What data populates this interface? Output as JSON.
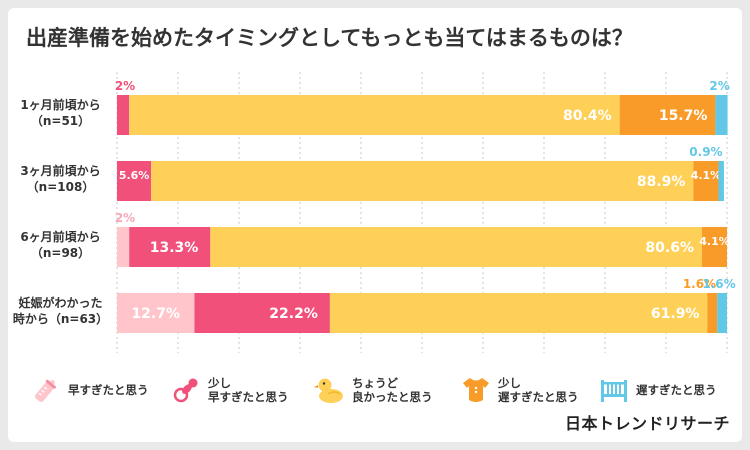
{
  "title": "出産準備を始めたタイミングとしてもっとも当てはまるものは？",
  "brand": "日本トレンドリサーチ",
  "colors": {
    "too_early": "#ffc5cb",
    "slightly_early": "#f0507a",
    "just_right": "#ffd057",
    "slightly_late": "#f99b28",
    "too_late": "#63c8e8",
    "grid": "#c8c8c8",
    "text_dark": "#333333"
  },
  "rows": [
    {
      "line1": "1ヶ月前頃から",
      "line2": "（n=51）"
    },
    {
      "line1": "3ヶ月前頃から",
      "line2": "（n=108）"
    },
    {
      "line1": "6ヶ月前頃から",
      "line2": "（n=98）"
    },
    {
      "line1": "妊娠がわかった",
      "line2": "時から（n=63）"
    }
  ],
  "legend": [
    {
      "icon": "baby-bottle-icon",
      "line1": "早すぎたと思う",
      "line2": ""
    },
    {
      "icon": "pacifier-icon",
      "line1": "少し",
      "line2": "早すぎたと思う"
    },
    {
      "icon": "rubber-duck-icon",
      "line1": "ちょうど",
      "line2": "良かったと思う"
    },
    {
      "icon": "baby-onesie-icon",
      "line1": "少し",
      "line2": "遅すぎたと思う"
    },
    {
      "icon": "crib-icon",
      "line1": "遅すぎたと思う",
      "line2": ""
    }
  ],
  "chart_data": {
    "type": "bar",
    "orientation": "horizontal",
    "stacked": true,
    "title": "出産準備を始めたタイミングとしてもっとも当てはまるものは？",
    "categories": [
      "1ヶ月前頃から（n=51）",
      "3ヶ月前頃から（n=108）",
      "6ヶ月前頃から（n=98）",
      "妊娠がわかった時から（n=63）"
    ],
    "xlim": [
      0,
      100
    ],
    "unit": "%",
    "grid": true,
    "legend_position": "bottom",
    "series": [
      {
        "name": "早すぎたと思う",
        "color": "#ffc5cb",
        "values": [
          0,
          0,
          2.0,
          12.7
        ],
        "labels": [
          "",
          "",
          "2%",
          "12.7%"
        ]
      },
      {
        "name": "少し早すぎたと思う",
        "color": "#f0507a",
        "values": [
          2.0,
          5.6,
          13.3,
          22.2
        ],
        "labels": [
          "2%",
          "5.6%",
          "13.3%",
          "22.2%"
        ]
      },
      {
        "name": "ちょうど良かったと思う",
        "color": "#ffd057",
        "values": [
          80.4,
          88.9,
          80.6,
          61.9
        ],
        "labels": [
          "80.4%",
          "88.9%",
          "80.6%",
          "61.9%"
        ]
      },
      {
        "name": "少し遅すぎたと思う",
        "color": "#f99b28",
        "values": [
          15.7,
          4.1,
          4.1,
          1.6
        ],
        "labels": [
          "15.7%",
          "4.1%",
          "4.1%",
          "1.6%"
        ]
      },
      {
        "name": "遅すぎたと思う",
        "color": "#63c8e8",
        "values": [
          2.0,
          0.9,
          0,
          1.6
        ],
        "labels": [
          "2%",
          "0.9%",
          "",
          "1.6%"
        ]
      }
    ]
  }
}
